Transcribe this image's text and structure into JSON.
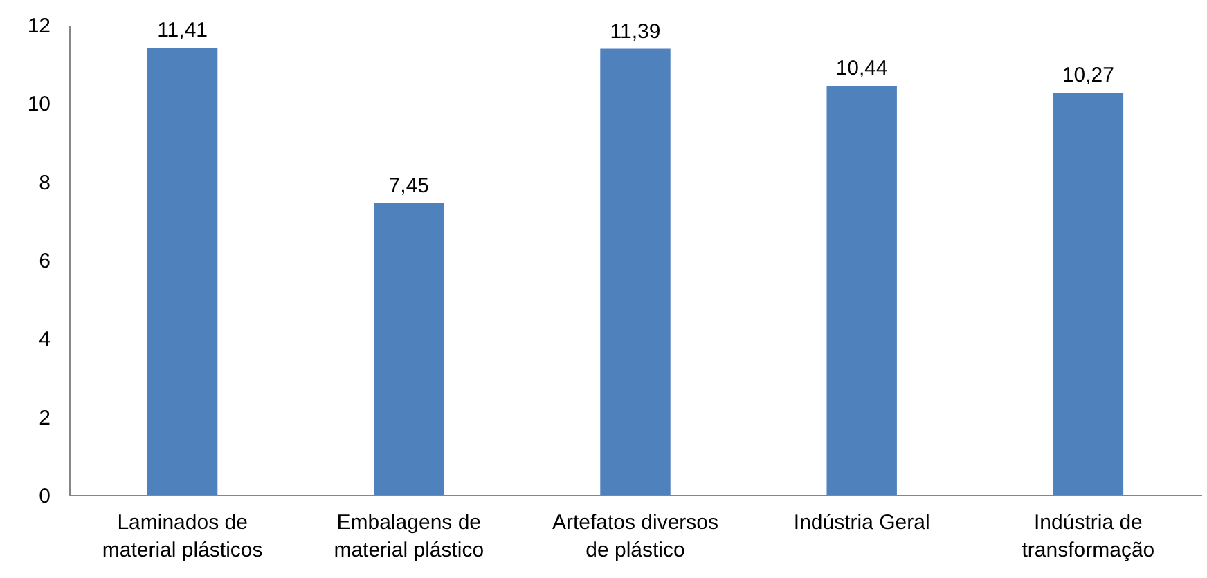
{
  "chart_data": {
    "type": "bar",
    "categories": [
      "Laminados de material plásticos",
      "Embalagens de material plástico",
      "Artefatos diversos de plástico",
      "Indústria Geral",
      "Indústria de transformação"
    ],
    "values": [
      11.41,
      7.45,
      11.39,
      10.44,
      10.27
    ],
    "value_labels": [
      "11,41",
      "7,45",
      "11,39",
      "10,44",
      "10,27"
    ],
    "color": "#4f81bd",
    "ylim": [
      0,
      12
    ],
    "yticks": [
      0,
      2,
      4,
      6,
      8,
      10,
      12
    ]
  }
}
